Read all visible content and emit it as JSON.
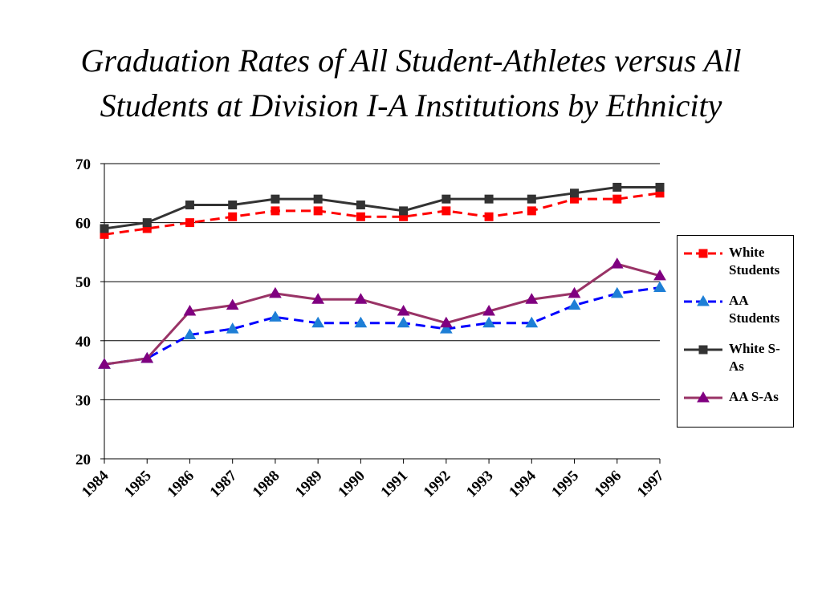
{
  "title_lines": [
    "Graduation Rates of All Student-Athletes versus All",
    "Students at Division I-A Institutions by Ethnicity"
  ],
  "chart_data": {
    "type": "line",
    "title": "Graduation Rates of All Student-Athletes versus All Students at Division I-A Institutions by Ethnicity",
    "x": [
      "1984",
      "1985",
      "1986",
      "1987",
      "1988",
      "1989",
      "1990",
      "1991",
      "1992",
      "1993",
      "1994",
      "1995",
      "1996",
      "1997"
    ],
    "ylim": [
      20,
      70
    ],
    "yticks": [
      20,
      30,
      40,
      50,
      60,
      70
    ],
    "grid": "horizontal",
    "legend_position": "right",
    "series": [
      {
        "name": "White Students",
        "color": "#ff0000",
        "dash": "dashed",
        "marker": "square",
        "values": [
          58,
          59,
          60,
          61,
          62,
          62,
          61,
          61,
          62,
          61,
          62,
          64,
          64,
          65
        ]
      },
      {
        "name": "AA Students",
        "color": "#0000ff",
        "dash": "dashed",
        "marker": "triangle",
        "marker_color": "#1e7fd6",
        "values": [
          36,
          37,
          41,
          42,
          44,
          43,
          43,
          43,
          42,
          43,
          43,
          46,
          48,
          49
        ]
      },
      {
        "name": "White S-As",
        "color": "#333333",
        "dash": "solid",
        "marker": "square",
        "values": [
          59,
          60,
          63,
          63,
          64,
          64,
          63,
          62,
          64,
          64,
          64,
          65,
          66,
          66
        ]
      },
      {
        "name": "AA S-As",
        "color": "#993366",
        "dash": "solid",
        "marker": "triangle",
        "marker_color": "#800080",
        "values": [
          36,
          37,
          45,
          46,
          48,
          47,
          47,
          45,
          43,
          45,
          47,
          48,
          53,
          51
        ]
      }
    ]
  },
  "legend": [
    {
      "lines": [
        "White",
        "Students"
      ]
    },
    {
      "lines": [
        "AA",
        "Students"
      ]
    },
    {
      "lines": [
        "White S-",
        "As"
      ]
    },
    {
      "lines": [
        "AA S-As"
      ]
    }
  ]
}
